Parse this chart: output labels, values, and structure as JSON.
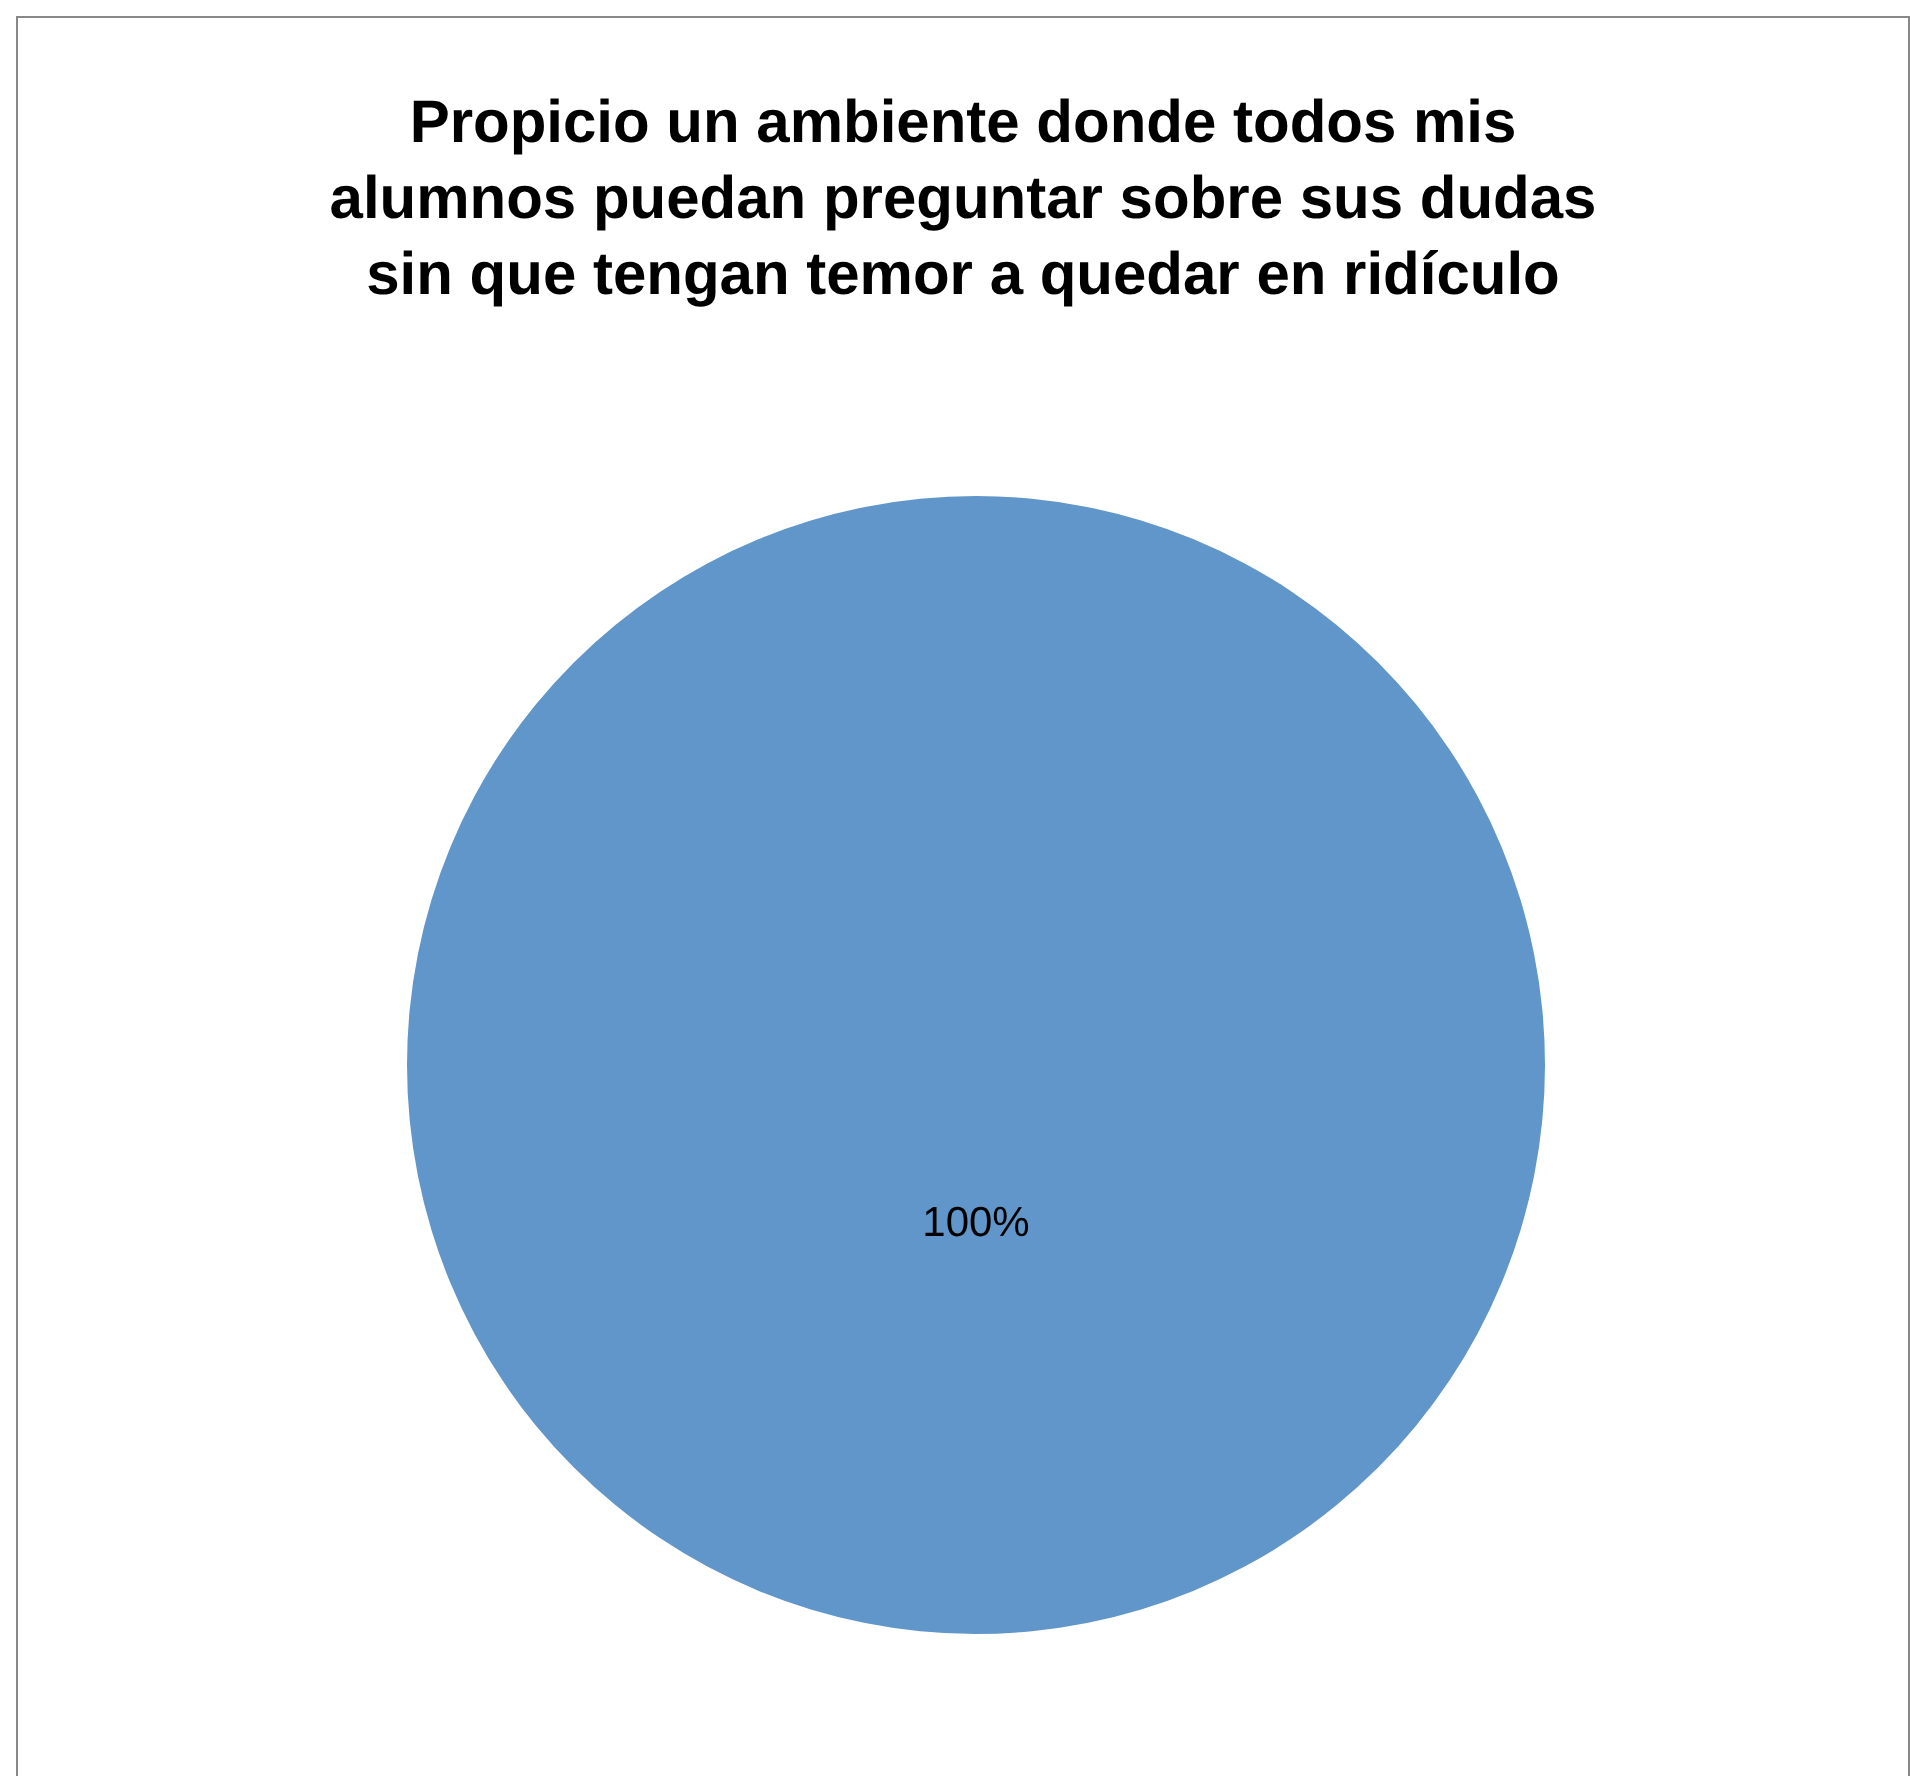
{
  "chart_data": {
    "type": "pie",
    "title": "Propicio un ambiente donde todos mis alumnos puedan preguntar sobre sus dudas sin que tengan temor a quedar en ridículo",
    "categories": [
      null
    ],
    "values": [
      100
    ],
    "colors": [
      "#6096c9"
    ],
    "value_labels": [
      "100%"
    ],
    "legend": false
  }
}
